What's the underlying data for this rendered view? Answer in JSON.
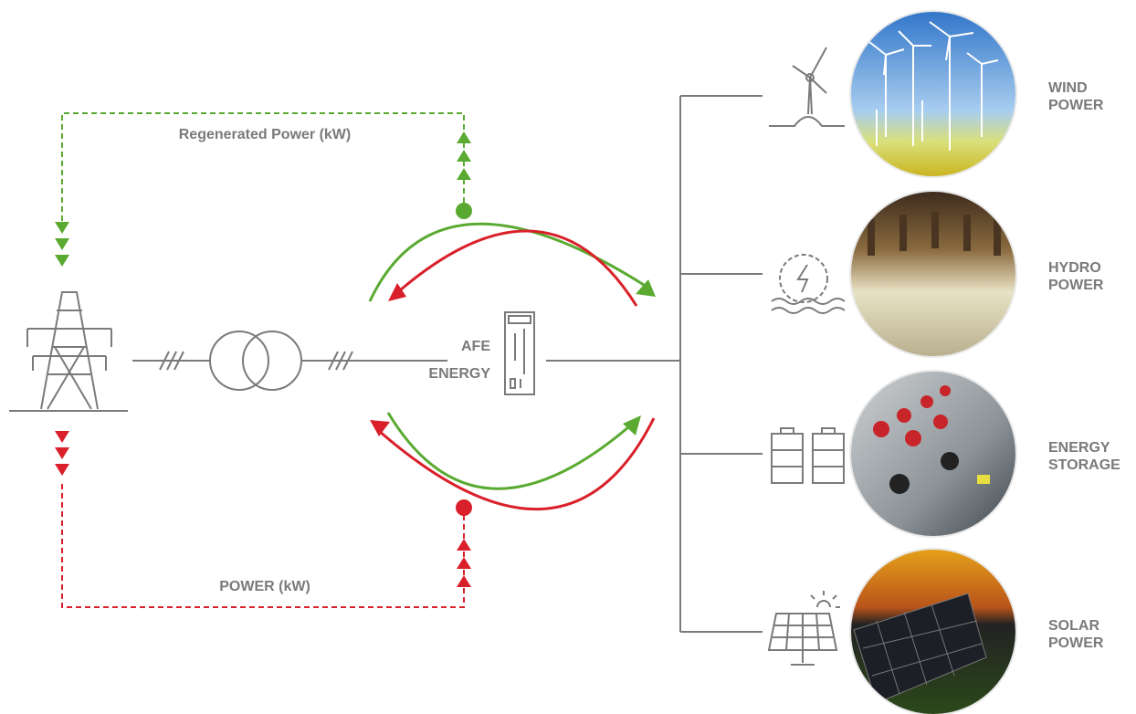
{
  "flows": {
    "regenerated": "Regenerated Power (kW)",
    "power": "POWER (kW)"
  },
  "device": {
    "lines": [
      "AFE",
      "ENERGY"
    ]
  },
  "sources": [
    {
      "lines": [
        "WIND",
        "POWER"
      ]
    },
    {
      "lines": [
        "HYDRO",
        "POWER"
      ]
    },
    {
      "lines": [
        "ENERGY",
        "STORAGE"
      ]
    },
    {
      "lines": [
        "SOLAR",
        "POWER"
      ]
    }
  ]
}
